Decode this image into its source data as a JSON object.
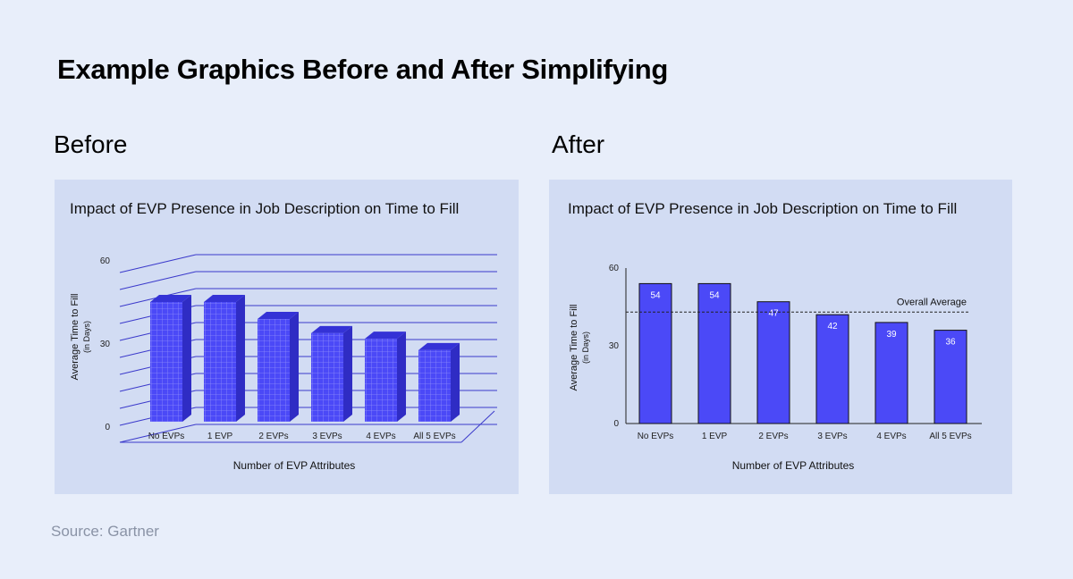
{
  "page": {
    "title": "Example Graphics Before and After Simplifying",
    "before_label": "Before",
    "after_label": "After",
    "source": "Source: Gartner"
  },
  "colors": {
    "bar": "#4b49f7",
    "bar_dark": "#2f2cc4",
    "bar_top": "#3432d6",
    "grid_3d": "#3b3acb",
    "background": "#e8eefa",
    "panel": "#d2dcf3"
  },
  "chart_data": [
    {
      "id": "before",
      "type": "bar",
      "style": "3d-patterned",
      "title": "Impact of EVP Presence in Job Description on Time to Fill",
      "categories": [
        "No EVPs",
        "1 EVP",
        "2 EVPs",
        "3 EVPs",
        "4 EVPs",
        "All 5 EVPs"
      ],
      "values": [
        48,
        48,
        42,
        37,
        35,
        31
      ],
      "ylabel": [
        "Average Time to Fill",
        "(in Days)"
      ],
      "xlabel": "Number of EVP Attributes",
      "yticks": [
        "0",
        "30",
        "60"
      ],
      "ylim": [
        0,
        60
      ],
      "grid": true,
      "data_labels": false
    },
    {
      "id": "after",
      "type": "bar",
      "style": "flat",
      "title": "Impact of EVP Presence in Job Description on Time to Fill",
      "categories": [
        "No EVPs",
        "1 EVP",
        "2 EVPs",
        "3 EVPs",
        "4 EVPs",
        "All 5 EVPs"
      ],
      "values": [
        54,
        54,
        47,
        42,
        39,
        36
      ],
      "ylabel": [
        "Average Time to Fill",
        "(in Days)"
      ],
      "xlabel": "Number of EVP Attributes",
      "yticks": [
        "0",
        "30",
        "60"
      ],
      "ylim": [
        0,
        60
      ],
      "grid": false,
      "data_labels": true,
      "reference_line": {
        "label": "Overall Average",
        "value": 43,
        "style": "dashed"
      }
    }
  ]
}
